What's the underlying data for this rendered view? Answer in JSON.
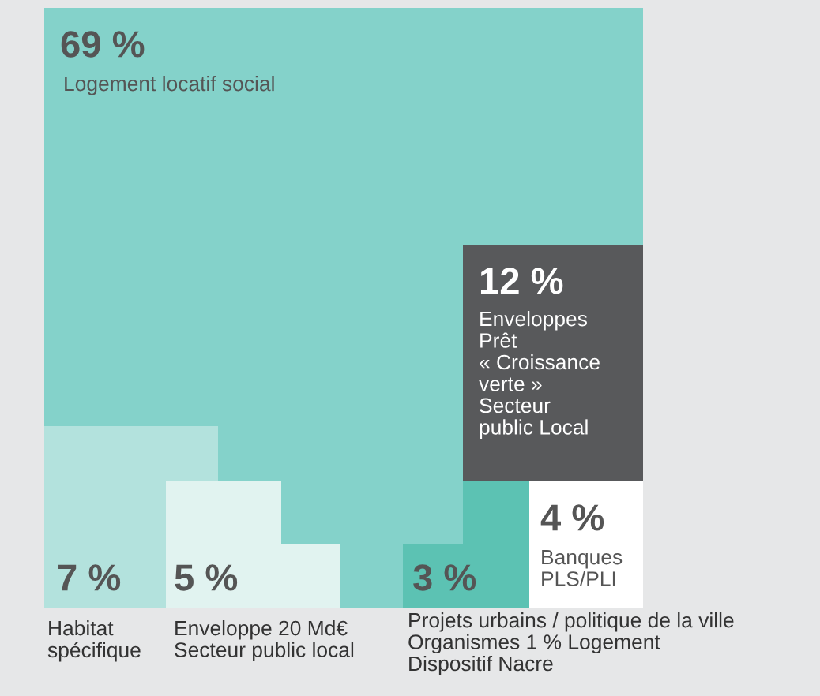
{
  "chart_data": {
    "type": "other",
    "categories": [
      "Logement locatif social",
      "Enveloppes\nPrêt\n« Croissance\nverte »\nSecteur\npublic Local",
      "Habitat\nspécifique",
      "Enveloppe 20 Md€\nSecteur public local",
      "Projets urbains / politique de la ville\nOrganismes 1 % Logement\nDispositif Nacre",
      "Banques\nPLS/PLI"
    ],
    "values": [
      69,
      12,
      7,
      5,
      3,
      4
    ],
    "value_labels": [
      "69 %",
      "12 %",
      "7 %",
      "5 %",
      "3 %",
      "4 %"
    ],
    "colors": [
      "#84d2ca",
      "#58595b",
      "#b3e2dd",
      "#e1f3f0",
      "#5cc2b3",
      "#ffffff"
    ]
  }
}
